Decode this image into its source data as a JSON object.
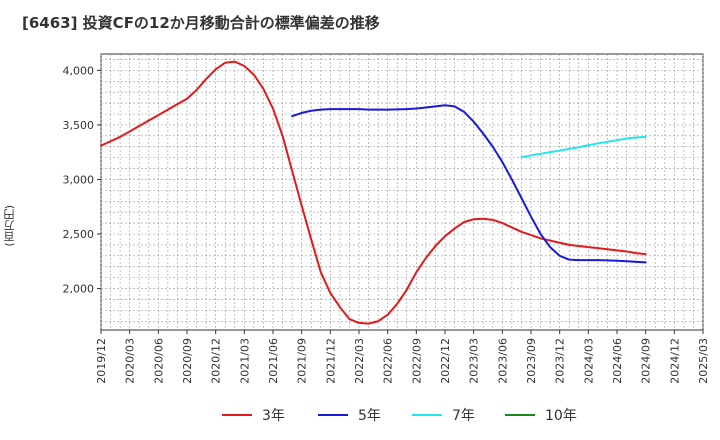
{
  "header": {
    "title": "[6463]  投資CFの12か月移動合計の標準偏差の推移"
  },
  "colors": {
    "3y": "#e31a1c",
    "5y": "#1a1adb",
    "7y": "#22e5f0",
    "10y": "#1b8a1b",
    "grid": "#999999",
    "axis": "#333333"
  },
  "chart_data": {
    "type": "line",
    "title": "[6463]  投資CFの12か月移動合計の標準偏差の推移",
    "xlabel": "",
    "ylabel": "(百万円)",
    "ylim": [
      1620,
      4150
    ],
    "yticks": [
      2000,
      2500,
      3000,
      3500,
      4000
    ],
    "ytick_labels": [
      "2,000",
      "2,500",
      "3,000",
      "3,500",
      "4,000"
    ],
    "xlim": [
      "2019-12",
      "2025-03"
    ],
    "xtick_labels": [
      "2019/12",
      "2020/03",
      "2020/06",
      "2020/09",
      "2020/12",
      "2021/03",
      "2021/06",
      "2021/09",
      "2021/12",
      "2022/03",
      "2022/06",
      "2022/09",
      "2022/12",
      "2023/03",
      "2023/06",
      "2023/09",
      "2023/12",
      "2024/03",
      "2024/06",
      "2024/09",
      "2024/12",
      "2025/03"
    ],
    "grid": true,
    "legend_position": "bottom",
    "series": [
      {
        "name": "3年",
        "color_key": "3y",
        "points": [
          [
            "2019-12",
            3310
          ],
          [
            "2020-01",
            3350
          ],
          [
            "2020-02",
            3390
          ],
          [
            "2020-03",
            3440
          ],
          [
            "2020-04",
            3490
          ],
          [
            "2020-05",
            3540
          ],
          [
            "2020-06",
            3590
          ],
          [
            "2020-07",
            3640
          ],
          [
            "2020-08",
            3690
          ],
          [
            "2020-09",
            3740
          ],
          [
            "2020-10",
            3820
          ],
          [
            "2020-11",
            3920
          ],
          [
            "2020-12",
            4010
          ],
          [
            "2021-01",
            4070
          ],
          [
            "2021-02",
            4080
          ],
          [
            "2021-03",
            4040
          ],
          [
            "2021-04",
            3960
          ],
          [
            "2021-05",
            3830
          ],
          [
            "2021-06",
            3650
          ],
          [
            "2021-07",
            3400
          ],
          [
            "2021-08",
            3080
          ],
          [
            "2021-09",
            2760
          ],
          [
            "2021-10",
            2450
          ],
          [
            "2021-11",
            2150
          ],
          [
            "2021-12",
            1960
          ],
          [
            "2022-01",
            1830
          ],
          [
            "2022-02",
            1720
          ],
          [
            "2022-03",
            1685
          ],
          [
            "2022-04",
            1678
          ],
          [
            "2022-05",
            1700
          ],
          [
            "2022-06",
            1760
          ],
          [
            "2022-07",
            1860
          ],
          [
            "2022-08",
            1990
          ],
          [
            "2022-09",
            2150
          ],
          [
            "2022-10",
            2280
          ],
          [
            "2022-11",
            2390
          ],
          [
            "2022-12",
            2480
          ],
          [
            "2023-01",
            2550
          ],
          [
            "2023-02",
            2610
          ],
          [
            "2023-03",
            2635
          ],
          [
            "2023-04",
            2640
          ],
          [
            "2023-05",
            2630
          ],
          [
            "2023-06",
            2600
          ],
          [
            "2023-07",
            2560
          ],
          [
            "2023-08",
            2520
          ],
          [
            "2023-09",
            2490
          ],
          [
            "2023-10",
            2460
          ],
          [
            "2023-11",
            2440
          ],
          [
            "2023-12",
            2420
          ],
          [
            "2024-01",
            2400
          ],
          [
            "2024-02",
            2390
          ],
          [
            "2024-03",
            2380
          ],
          [
            "2024-04",
            2370
          ],
          [
            "2024-05",
            2360
          ],
          [
            "2024-06",
            2350
          ],
          [
            "2024-07",
            2340
          ],
          [
            "2024-08",
            2325
          ],
          [
            "2024-09",
            2315
          ]
        ]
      },
      {
        "name": "5年",
        "color_key": "5y",
        "points": [
          [
            "2021-08",
            3580
          ],
          [
            "2021-09",
            3610
          ],
          [
            "2021-10",
            3630
          ],
          [
            "2021-11",
            3640
          ],
          [
            "2021-12",
            3645
          ],
          [
            "2022-01",
            3645
          ],
          [
            "2022-02",
            3645
          ],
          [
            "2022-03",
            3645
          ],
          [
            "2022-04",
            3640
          ],
          [
            "2022-05",
            3640
          ],
          [
            "2022-06",
            3640
          ],
          [
            "2022-07",
            3642
          ],
          [
            "2022-08",
            3645
          ],
          [
            "2022-09",
            3650
          ],
          [
            "2022-10",
            3660
          ],
          [
            "2022-11",
            3670
          ],
          [
            "2022-12",
            3680
          ],
          [
            "2023-01",
            3670
          ],
          [
            "2023-02",
            3620
          ],
          [
            "2023-03",
            3530
          ],
          [
            "2023-04",
            3420
          ],
          [
            "2023-05",
            3300
          ],
          [
            "2023-06",
            3160
          ],
          [
            "2023-07",
            3000
          ],
          [
            "2023-08",
            2830
          ],
          [
            "2023-09",
            2660
          ],
          [
            "2023-10",
            2500
          ],
          [
            "2023-11",
            2380
          ],
          [
            "2023-12",
            2300
          ],
          [
            "2024-01",
            2265
          ],
          [
            "2024-02",
            2260
          ],
          [
            "2024-03",
            2260
          ],
          [
            "2024-04",
            2260
          ],
          [
            "2024-05",
            2258
          ],
          [
            "2024-06",
            2255
          ],
          [
            "2024-07",
            2250
          ],
          [
            "2024-08",
            2245
          ],
          [
            "2024-09",
            2240
          ]
        ]
      },
      {
        "name": "7年",
        "color_key": "7y",
        "points": [
          [
            "2023-08",
            3205
          ],
          [
            "2023-09",
            3220
          ],
          [
            "2023-10",
            3235
          ],
          [
            "2023-11",
            3250
          ],
          [
            "2023-12",
            3265
          ],
          [
            "2024-01",
            3280
          ],
          [
            "2024-02",
            3295
          ],
          [
            "2024-03",
            3315
          ],
          [
            "2024-04",
            3330
          ],
          [
            "2024-05",
            3345
          ],
          [
            "2024-06",
            3360
          ],
          [
            "2024-07",
            3375
          ],
          [
            "2024-08",
            3385
          ],
          [
            "2024-09",
            3390
          ]
        ]
      },
      {
        "name": "10年",
        "color_key": "10y",
        "points": []
      }
    ]
  }
}
